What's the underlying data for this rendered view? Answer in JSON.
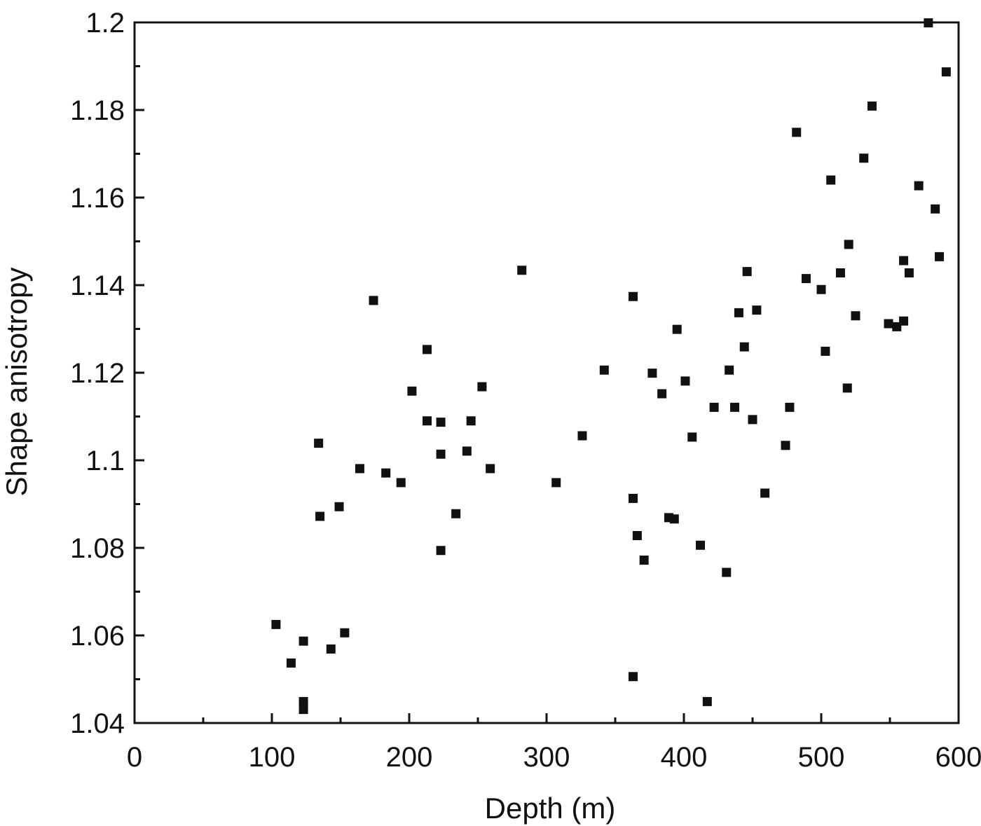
{
  "chart_data": {
    "type": "scatter",
    "title": "",
    "xlabel": "Depth (m)",
    "ylabel": "Shape anisotropy",
    "xlim": [
      0,
      600
    ],
    "ylim": [
      1.04,
      1.2
    ],
    "xticks": [
      0,
      100,
      200,
      300,
      400,
      500,
      600
    ],
    "xtick_labels": [
      "0",
      "100",
      "200",
      "300",
      "400",
      "500",
      "600"
    ],
    "yticks": [
      1.04,
      1.06,
      1.08,
      1.1,
      1.12,
      1.14,
      1.16,
      1.18,
      1.2
    ],
    "ytick_labels": [
      "1.04",
      "1.06",
      "1.08",
      "1.1",
      "1.12",
      "1.14",
      "1.16",
      "1.18",
      "1.2"
    ],
    "grid": false,
    "marker_color": "#111111",
    "series": [
      {
        "points": [
          [
            103,
            1.0625
          ],
          [
            114,
            1.0537
          ],
          [
            123,
            1.0587
          ],
          [
            123,
            1.0449
          ],
          [
            123,
            1.0431
          ],
          [
            134,
            1.1039
          ],
          [
            135,
            1.0872
          ],
          [
            143,
            1.0569
          ],
          [
            149,
            1.0894
          ],
          [
            153,
            1.0606
          ],
          [
            164,
            1.0981
          ],
          [
            174,
            1.1365
          ],
          [
            183,
            1.0971
          ],
          [
            194,
            1.0949
          ],
          [
            202,
            1.1158
          ],
          [
            213,
            1.1253
          ],
          [
            213,
            1.109
          ],
          [
            223,
            1.1087
          ],
          [
            223,
            1.1014
          ],
          [
            223,
            1.0794
          ],
          [
            234,
            1.0878
          ],
          [
            242,
            1.1021
          ],
          [
            245,
            1.109
          ],
          [
            253,
            1.1168
          ],
          [
            259,
            1.0981
          ],
          [
            282,
            1.1434
          ],
          [
            307,
            1.0949
          ],
          [
            326,
            1.1056
          ],
          [
            342,
            1.1206
          ],
          [
            363,
            1.1374
          ],
          [
            363,
            1.0913
          ],
          [
            363,
            1.0506
          ],
          [
            366,
            1.0828
          ],
          [
            371,
            1.0772
          ],
          [
            377,
            1.1199
          ],
          [
            384,
            1.1152
          ],
          [
            389,
            1.0869
          ],
          [
            393,
            1.0866
          ],
          [
            395,
            1.1299
          ],
          [
            401,
            1.1181
          ],
          [
            406,
            1.1053
          ],
          [
            412,
            1.0806
          ],
          [
            417,
            1.0449
          ],
          [
            422,
            1.1121
          ],
          [
            431,
            1.0744
          ],
          [
            433,
            1.1206
          ],
          [
            437,
            1.1121
          ],
          [
            440,
            1.1337
          ],
          [
            444,
            1.1259
          ],
          [
            446,
            1.1431
          ],
          [
            450,
            1.1093
          ],
          [
            453,
            1.1343
          ],
          [
            459,
            1.0925
          ],
          [
            474,
            1.1034
          ],
          [
            477,
            1.1121
          ],
          [
            482,
            1.1749
          ],
          [
            489,
            1.1415
          ],
          [
            500,
            1.139
          ],
          [
            503,
            1.1249
          ],
          [
            507,
            1.164
          ],
          [
            514,
            1.1428
          ],
          [
            519,
            1.1165
          ],
          [
            520,
            1.1493
          ],
          [
            525,
            1.133
          ],
          [
            531,
            1.169
          ],
          [
            537,
            1.1809
          ],
          [
            549,
            1.1312
          ],
          [
            555,
            1.1305
          ],
          [
            560,
            1.1318
          ],
          [
            560,
            1.1456
          ],
          [
            564,
            1.1428
          ],
          [
            571,
            1.1627
          ],
          [
            578,
            1.1999
          ],
          [
            583,
            1.1574
          ],
          [
            586,
            1.1465
          ],
          [
            591,
            1.1887
          ]
        ]
      }
    ]
  }
}
